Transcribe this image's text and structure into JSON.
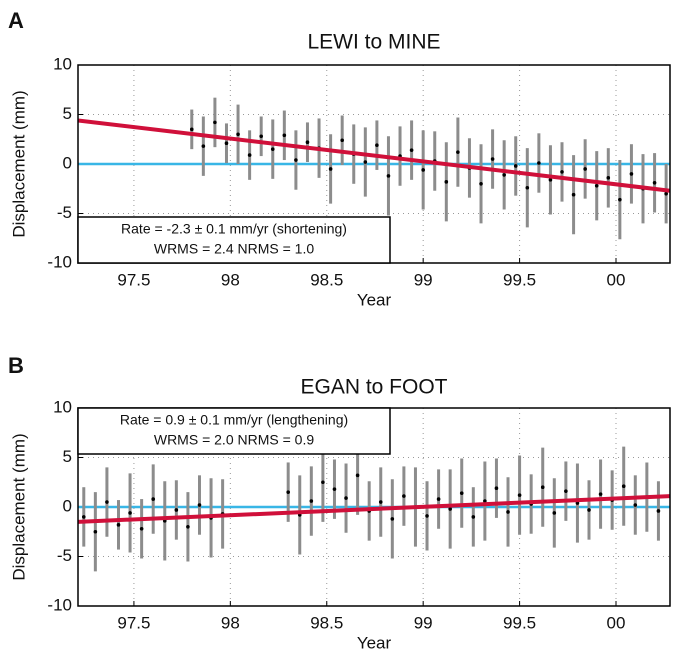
{
  "chart_data": [
    {
      "type": "scatter",
      "panel_label": "A",
      "title": "LEWI to MINE",
      "xlabel": "Year",
      "ylabel": "Displacement (mm)",
      "xlim": [
        97.21,
        100.28
      ],
      "xticks": [
        97.5,
        98,
        98.5,
        99,
        99.5,
        {
          "value": 100,
          "label": "00"
        }
      ],
      "ylim": [
        -10,
        10
      ],
      "yticks": [
        -10,
        -5,
        0,
        5,
        10
      ],
      "grid": true,
      "x": [
        97.8,
        97.86,
        97.92,
        97.98,
        98.04,
        98.1,
        98.16,
        98.22,
        98.28,
        98.34,
        98.4,
        98.46,
        98.52,
        98.58,
        98.64,
        98.7,
        98.76,
        98.82,
        98.88,
        98.94,
        99.0,
        99.06,
        99.12,
        99.18,
        99.24,
        99.3,
        99.36,
        99.42,
        99.48,
        99.54,
        99.6,
        99.66,
        99.72,
        99.78,
        99.84,
        99.9,
        99.96,
        100.02,
        100.08,
        100.14,
        100.2,
        100.26
      ],
      "values": [
        3.5,
        1.8,
        4.2,
        2.1,
        3.0,
        0.9,
        2.8,
        1.5,
        2.9,
        0.4,
        2.2,
        1.6,
        -0.5,
        2.4,
        1.0,
        0.2,
        1.9,
        -1.2,
        0.8,
        1.4,
        -0.6,
        0.3,
        -1.8,
        1.2,
        -0.4,
        -2.0,
        0.5,
        -1.1,
        -0.2,
        -2.4,
        0.1,
        -1.6,
        -0.8,
        -3.1,
        -0.5,
        -2.2,
        -1.4,
        -3.6,
        -1.0,
        -2.5,
        -1.9,
        -3.0
      ],
      "errors": [
        2,
        3,
        2.5,
        2,
        3,
        2.5,
        2,
        3,
        2.5,
        3,
        2,
        3,
        3.5,
        2.5,
        3,
        3.5,
        2.5,
        4,
        3,
        3,
        4,
        3,
        4,
        3.5,
        3,
        4,
        3,
        3.5,
        3,
        4,
        3,
        3.5,
        3,
        4,
        3,
        3.5,
        3,
        4,
        3,
        3.5,
        3,
        3
      ],
      "color": "#000000",
      "error_color": "#8c8c8c",
      "trend": {
        "color": "#d0103a",
        "values": [
          4.4,
          -2.7
        ]
      },
      "reference_line": {
        "value": 0,
        "color": "#38b6e6"
      },
      "annotation_corner": "lower left",
      "annotation": [
        "Rate = -2.3 ± 0.1 mm/yr (shortening)",
        "WRMS = 2.4   NRMS = 1.0"
      ]
    },
    {
      "type": "scatter",
      "panel_label": "B",
      "title": "EGAN to FOOT",
      "xlabel": "Year",
      "ylabel": "Displacement (mm)",
      "xlim": [
        97.21,
        100.28
      ],
      "xticks": [
        97.5,
        98,
        98.5,
        99,
        99.5,
        {
          "value": 100,
          "label": "00"
        }
      ],
      "ylim": [
        -10,
        10
      ],
      "yticks": [
        -10,
        -5,
        0,
        5,
        10
      ],
      "grid": true,
      "x": [
        97.24,
        97.3,
        97.36,
        97.42,
        97.48,
        97.54,
        97.6,
        97.66,
        97.72,
        97.78,
        97.84,
        97.9,
        97.96,
        98.3,
        98.36,
        98.42,
        98.48,
        98.54,
        98.6,
        98.66,
        98.72,
        98.78,
        98.84,
        98.9,
        98.96,
        99.02,
        99.08,
        99.14,
        99.2,
        99.26,
        99.32,
        99.38,
        99.44,
        99.5,
        99.56,
        99.62,
        99.68,
        99.74,
        99.8,
        99.86,
        99.92,
        99.98,
        100.04,
        100.1,
        100.16,
        100.22
      ],
      "values": [
        -1.0,
        -2.5,
        0.5,
        -1.8,
        -0.6,
        -2.2,
        0.8,
        -1.4,
        -0.3,
        -2.0,
        0.2,
        -1.1,
        -0.7,
        1.5,
        -0.8,
        0.6,
        2.5,
        1.8,
        0.9,
        3.2,
        -0.4,
        0.5,
        -1.2,
        1.1,
        0.0,
        -0.9,
        0.8,
        -0.2,
        1.4,
        -1.0,
        0.6,
        1.9,
        -0.5,
        1.2,
        0.3,
        2.0,
        -0.6,
        1.6,
        0.4,
        -0.3,
        1.3,
        0.7,
        2.1,
        0.2,
        1.0,
        -0.4
      ],
      "errors": [
        3,
        4,
        3.5,
        2.5,
        4,
        3,
        3.5,
        4,
        3,
        3.5,
        3,
        4,
        3.5,
        3,
        4,
        3.5,
        4,
        3,
        3.5,
        4,
        3,
        3.5,
        4,
        3,
        4,
        3.5,
        3,
        4,
        3.5,
        3,
        4,
        3,
        3.5,
        4,
        3,
        4,
        3.5,
        3,
        4,
        3,
        3.5,
        3,
        4,
        3,
        3.5,
        3
      ],
      "color": "#000000",
      "error_color": "#8c8c8c",
      "trend": {
        "color": "#d0103a",
        "values": [
          -1.5,
          1.1
        ]
      },
      "reference_line": {
        "value": 0,
        "color": "#38b6e6"
      },
      "annotation_corner": "upper left",
      "annotation": [
        "Rate = 0.9 ± 0.1 mm/yr (lengthening)",
        "WRMS = 2.0   NRMS = 0.9"
      ]
    }
  ]
}
